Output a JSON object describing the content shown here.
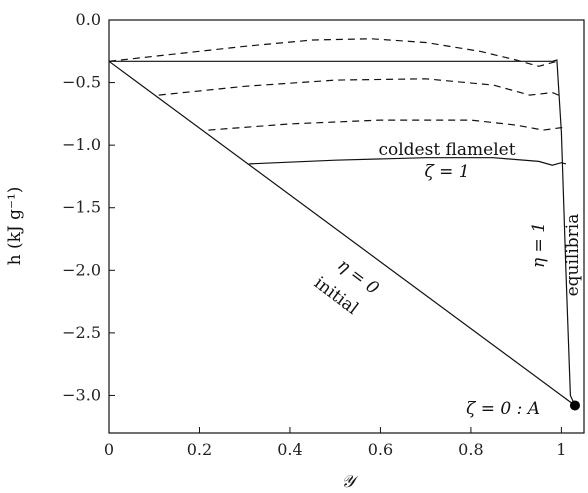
{
  "chart_data": {
    "type": "line",
    "xlabel": "𝒴",
    "ylabel": "h (kJ g⁻¹)",
    "xlim": [
      0,
      1.05
    ],
    "ylim": [
      -3.3,
      0
    ],
    "xticks": [
      "0",
      "0.2",
      "0.4",
      "0.6",
      "0.8",
      "1"
    ],
    "xtick_values": [
      0,
      0.2,
      0.4,
      0.6,
      0.8,
      1.0
    ],
    "yticks": [
      "0.0",
      "−0.5",
      "−1.0",
      "−1.5",
      "−2.0",
      "−2.5",
      "−3.0"
    ],
    "ytick_values": [
      0,
      -0.5,
      -1.0,
      -1.5,
      -2.0,
      -2.5,
      -3.0
    ],
    "grid": false,
    "series": [
      {
        "style": "solid",
        "points": [
          [
            0.0,
            -0.33
          ],
          [
            1.03,
            -3.08
          ]
        ]
      },
      {
        "style": "solid",
        "points": [
          [
            0.0,
            -0.33
          ],
          [
            0.98,
            -0.33
          ],
          [
            0.99,
            -0.32
          ],
          [
            1.0,
            -0.9
          ],
          [
            1.01,
            -2.0
          ],
          [
            1.02,
            -3.0
          ],
          [
            1.03,
            -3.08
          ]
        ]
      },
      {
        "style": "solid",
        "points": [
          [
            0.31,
            -1.15
          ],
          [
            0.5,
            -1.12
          ],
          [
            0.7,
            -1.1
          ],
          [
            0.85,
            -1.1
          ],
          [
            0.95,
            -1.13
          ],
          [
            0.98,
            -1.16
          ],
          [
            1.0,
            -1.14
          ],
          [
            1.01,
            -1.15
          ]
        ]
      },
      {
        "style": "dashed",
        "points": [
          [
            0.0,
            -0.33
          ],
          [
            0.15,
            -0.27
          ],
          [
            0.3,
            -0.21
          ],
          [
            0.45,
            -0.16
          ],
          [
            0.58,
            -0.15
          ],
          [
            0.7,
            -0.18
          ],
          [
            0.82,
            -0.25
          ],
          [
            0.9,
            -0.32
          ],
          [
            0.95,
            -0.37
          ],
          [
            0.99,
            -0.33
          ]
        ]
      },
      {
        "style": "dashed",
        "points": [
          [
            0.11,
            -0.6
          ],
          [
            0.3,
            -0.53
          ],
          [
            0.5,
            -0.48
          ],
          [
            0.7,
            -0.47
          ],
          [
            0.85,
            -0.52
          ],
          [
            0.93,
            -0.6
          ],
          [
            0.98,
            -0.58
          ],
          [
            1.0,
            -0.61
          ]
        ]
      },
      {
        "style": "dashed",
        "points": [
          [
            0.22,
            -0.88
          ],
          [
            0.4,
            -0.83
          ],
          [
            0.6,
            -0.8
          ],
          [
            0.8,
            -0.8
          ],
          [
            0.9,
            -0.84
          ],
          [
            0.96,
            -0.88
          ],
          [
            1.0,
            -0.86
          ],
          [
            1.01,
            -0.87
          ]
        ]
      }
    ],
    "point_A": {
      "x": 1.03,
      "y": -3.08
    },
    "annotations": {
      "coldest": "coldest flamelet",
      "zeta1": "ζ = 1",
      "eta0": "η = 0",
      "initial": "initial",
      "eta1": "η = 1",
      "equilibria": "equilibria",
      "zeta0": "ζ = 0 : A"
    }
  }
}
